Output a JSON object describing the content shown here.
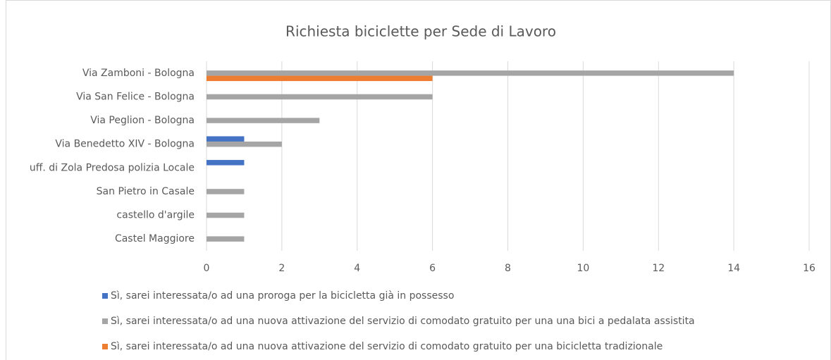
{
  "chart_data": {
    "type": "hbar",
    "title": "Richiesta biciclette per Sede di Lavoro",
    "categories": [
      "Via Zamboni - Bologna",
      "Via San Felice - Bologna",
      "Via Peglion - Bologna",
      "Via Benedetto XIV - Bologna",
      "uff. di Zola Predosa polizia Locale",
      "San Pietro in Casale",
      "castello d'argile",
      "Castel Maggiore"
    ],
    "series": [
      {
        "name": "Sì, sarei interessata/o ad una proroga per la bicicletta già in possesso",
        "color": "#4472c4",
        "values": [
          0,
          0,
          0,
          1,
          1,
          0,
          0,
          0
        ]
      },
      {
        "name": "Sì, sarei interessata/o ad una nuova attivazione del servizio di comodato gratuito per una una bici a pedalata assistita",
        "color": "#a5a5a5",
        "values": [
          14,
          6,
          3,
          2,
          0,
          1,
          1,
          1
        ]
      },
      {
        "name": "Sì, sarei interessata/o ad una nuova attivazione del servizio di comodato gratuito per una bicicletta tradizionale",
        "color": "#ed7d31",
        "values": [
          6,
          0,
          0,
          0,
          0,
          0,
          0,
          0
        ]
      }
    ],
    "xlim": [
      0,
      16
    ],
    "xticks": [
      0,
      2,
      4,
      6,
      8,
      10,
      12,
      14,
      16
    ],
    "grid": true,
    "legend": "bottom"
  }
}
